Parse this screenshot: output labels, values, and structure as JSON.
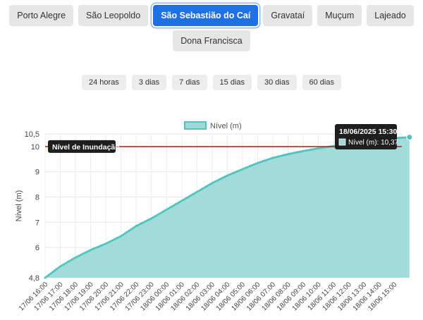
{
  "stations": [
    {
      "label": "Porto Alegre",
      "active": false
    },
    {
      "label": "São Leopoldo",
      "active": false
    },
    {
      "label": "São Sebastião do Caí",
      "active": true
    },
    {
      "label": "Gravataí",
      "active": false
    },
    {
      "label": "Muçum",
      "active": false
    },
    {
      "label": "Lajeado",
      "active": false
    },
    {
      "label": "Dona Francisca",
      "active": false
    }
  ],
  "ranges": [
    "24 horas",
    "3 dias",
    "7 dias",
    "15 dias",
    "30 dias",
    "60 dias"
  ],
  "colors": {
    "active_button": "#1f6fe5",
    "series_fill": "#9ddad8",
    "series_line": "#4fc3bd",
    "flood_line": "#cc2222",
    "tooltip_bg": "#1e1e1e"
  },
  "chart_data": {
    "type": "area",
    "title": "",
    "xlabel": "",
    "ylabel": "Nível (m)",
    "legend": {
      "label": "Nível (m)",
      "position": "top"
    },
    "ylim": [
      4.8,
      10.5
    ],
    "yticks": [
      "4,8",
      "6",
      "7",
      "8",
      "9",
      "10",
      "10,5"
    ],
    "ytick_values": [
      4.8,
      6,
      7,
      8,
      9,
      10,
      10.5
    ],
    "xticks": [
      "17/06 16:00",
      "17/06 17:00",
      "17/06 18:00",
      "17/06 19:00",
      "17/06 20:00",
      "17/06 21:00",
      "17/06 22:00",
      "17/06 23:00",
      "18/06 00:00",
      "18/06 01:00",
      "18/06 02:00",
      "18/06 03:00",
      "18/06 04:00",
      "18/06 05:00",
      "18/06 06:00",
      "18/06 07:00",
      "18/06 08:00",
      "18/06 09:00",
      "18/06 10:00",
      "18/06 11:00",
      "18/06 12:00",
      "18/06 13:00",
      "18/06 14:00",
      "18/06 15:00"
    ],
    "grid": true,
    "series": [
      {
        "name": "Nível (m)",
        "values": [
          4.8,
          5.25,
          5.6,
          5.9,
          6.15,
          6.45,
          6.85,
          7.15,
          7.5,
          7.85,
          8.2,
          8.55,
          8.85,
          9.1,
          9.35,
          9.55,
          9.7,
          9.82,
          9.93,
          10.02,
          10.1,
          10.18,
          10.25,
          10.33,
          10.37
        ]
      }
    ],
    "flood_line": {
      "value": 10,
      "label": "Nível de Inundação"
    },
    "tooltip": {
      "title": "18/06/2025 15:30",
      "label": "Nível (m): 10,37"
    }
  }
}
